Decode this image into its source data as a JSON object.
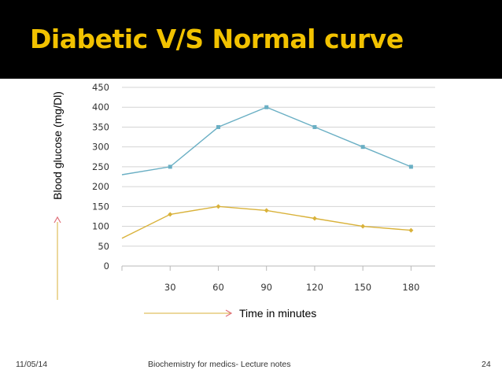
{
  "slide": {
    "title": "Diabetic V/S Normal curve",
    "footer_date": "11/05/14",
    "footer_center": "Biochemistry for medics- Lecture notes",
    "page_number": "24",
    "colors": {
      "title_bg": "#000000",
      "title_text": "#F2C200"
    }
  },
  "chart_data": {
    "type": "line",
    "title": "",
    "xlabel": "Time in minutes",
    "ylabel": "Blood glucose (mg/Dl)",
    "categories": [
      "",
      "30",
      "60",
      "90",
      "120",
      "150",
      "180"
    ],
    "y_ticks": [
      "0",
      "50",
      "100",
      "150",
      "200",
      "250",
      "300",
      "350",
      "400",
      "450"
    ],
    "ylim": [
      0,
      450
    ],
    "grid": true,
    "legend": "none",
    "series": [
      {
        "values": [
          230,
          250,
          350,
          400,
          350,
          300,
          250
        ],
        "color": "#6AAFC4",
        "marker": "square"
      },
      {
        "values": [
          70,
          130,
          150,
          140,
          120,
          100,
          90
        ],
        "color": "#D9B23A",
        "marker": "diamond"
      }
    ],
    "arrow_color": "#D9B23A",
    "arrow_head_color": "#E0707A"
  }
}
